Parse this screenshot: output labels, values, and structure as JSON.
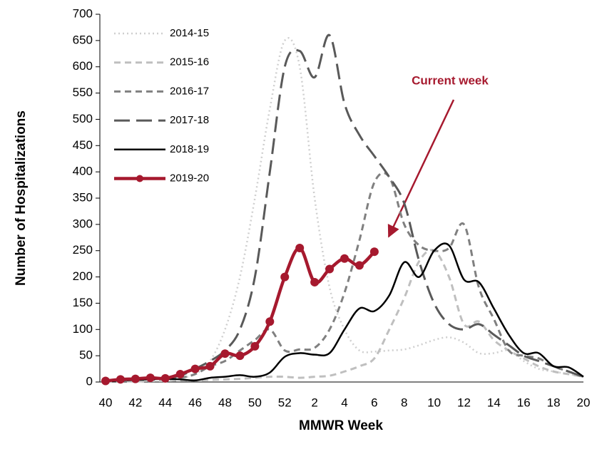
{
  "chart_data": {
    "type": "line",
    "x_label": "MMWR Week",
    "y_label": "Number of Hospitalizations",
    "annotation": "Current week",
    "categories": [
      40,
      null,
      42,
      null,
      44,
      null,
      46,
      null,
      48,
      null,
      50,
      null,
      52,
      null,
      2,
      null,
      4,
      null,
      6,
      null,
      8,
      null,
      10,
      null,
      12,
      null,
      14,
      null,
      16,
      null,
      18,
      null,
      20
    ],
    "ylim": [
      0,
      700
    ],
    "yticks": [
      0,
      50,
      100,
      150,
      200,
      250,
      300,
      350,
      400,
      450,
      500,
      550,
      600,
      650,
      700
    ],
    "series": [
      {
        "name": "2014-15",
        "color": "#cfcfcf",
        "line_style": "dotted",
        "values": [
          2,
          3,
          4,
          5,
          6,
          8,
          15,
          40,
          100,
          200,
          350,
          520,
          650,
          600,
          350,
          180,
          100,
          60,
          58,
          60,
          62,
          70,
          80,
          85,
          75,
          55,
          55,
          60,
          40,
          25,
          20,
          15,
          10
        ]
      },
      {
        "name": "2015-16",
        "color": "#bfbfbf",
        "line_style": "dashed",
        "values": [
          0,
          1,
          1,
          2,
          2,
          3,
          3,
          4,
          5,
          6,
          8,
          10,
          10,
          8,
          10,
          12,
          20,
          30,
          45,
          100,
          160,
          230,
          250,
          200,
          110,
          115,
          80,
          60,
          45,
          30,
          20,
          15,
          10
        ]
      },
      {
        "name": "2016-17",
        "color": "#808080",
        "line_style": "dashed",
        "values": [
          2,
          3,
          4,
          5,
          6,
          8,
          15,
          30,
          40,
          60,
          80,
          100,
          60,
          62,
          65,
          100,
          170,
          270,
          380,
          390,
          300,
          260,
          250,
          255,
          300,
          180,
          120,
          60,
          50,
          45,
          30,
          20,
          10
        ]
      },
      {
        "name": "2017-18",
        "color": "#595959",
        "line_style": "long-dashed",
        "values": [
          3,
          4,
          5,
          6,
          8,
          12,
          25,
          40,
          60,
          100,
          200,
          400,
          600,
          630,
          580,
          660,
          530,
          470,
          430,
          390,
          340,
          230,
          150,
          110,
          100,
          110,
          90,
          70,
          50,
          40,
          30,
          20,
          10
        ]
      },
      {
        "name": "2018-19",
        "color": "#000000",
        "line_style": "solid",
        "values": [
          2,
          3,
          4,
          5,
          6,
          5,
          3,
          8,
          10,
          13,
          10,
          18,
          48,
          55,
          52,
          55,
          100,
          140,
          135,
          165,
          228,
          200,
          250,
          260,
          195,
          190,
          140,
          90,
          55,
          55,
          30,
          28,
          10
        ]
      },
      {
        "name": "2019-20",
        "color": "#a6192e",
        "line_style": "solid",
        "markers": true,
        "values": [
          2,
          5,
          6,
          8,
          7,
          15,
          25,
          30,
          54,
          50,
          68,
          115,
          200,
          255,
          190,
          215,
          235,
          222,
          248,
          null,
          null,
          null,
          null,
          null,
          null,
          null,
          null,
          null,
          null,
          null,
          null,
          null,
          null
        ]
      }
    ]
  }
}
